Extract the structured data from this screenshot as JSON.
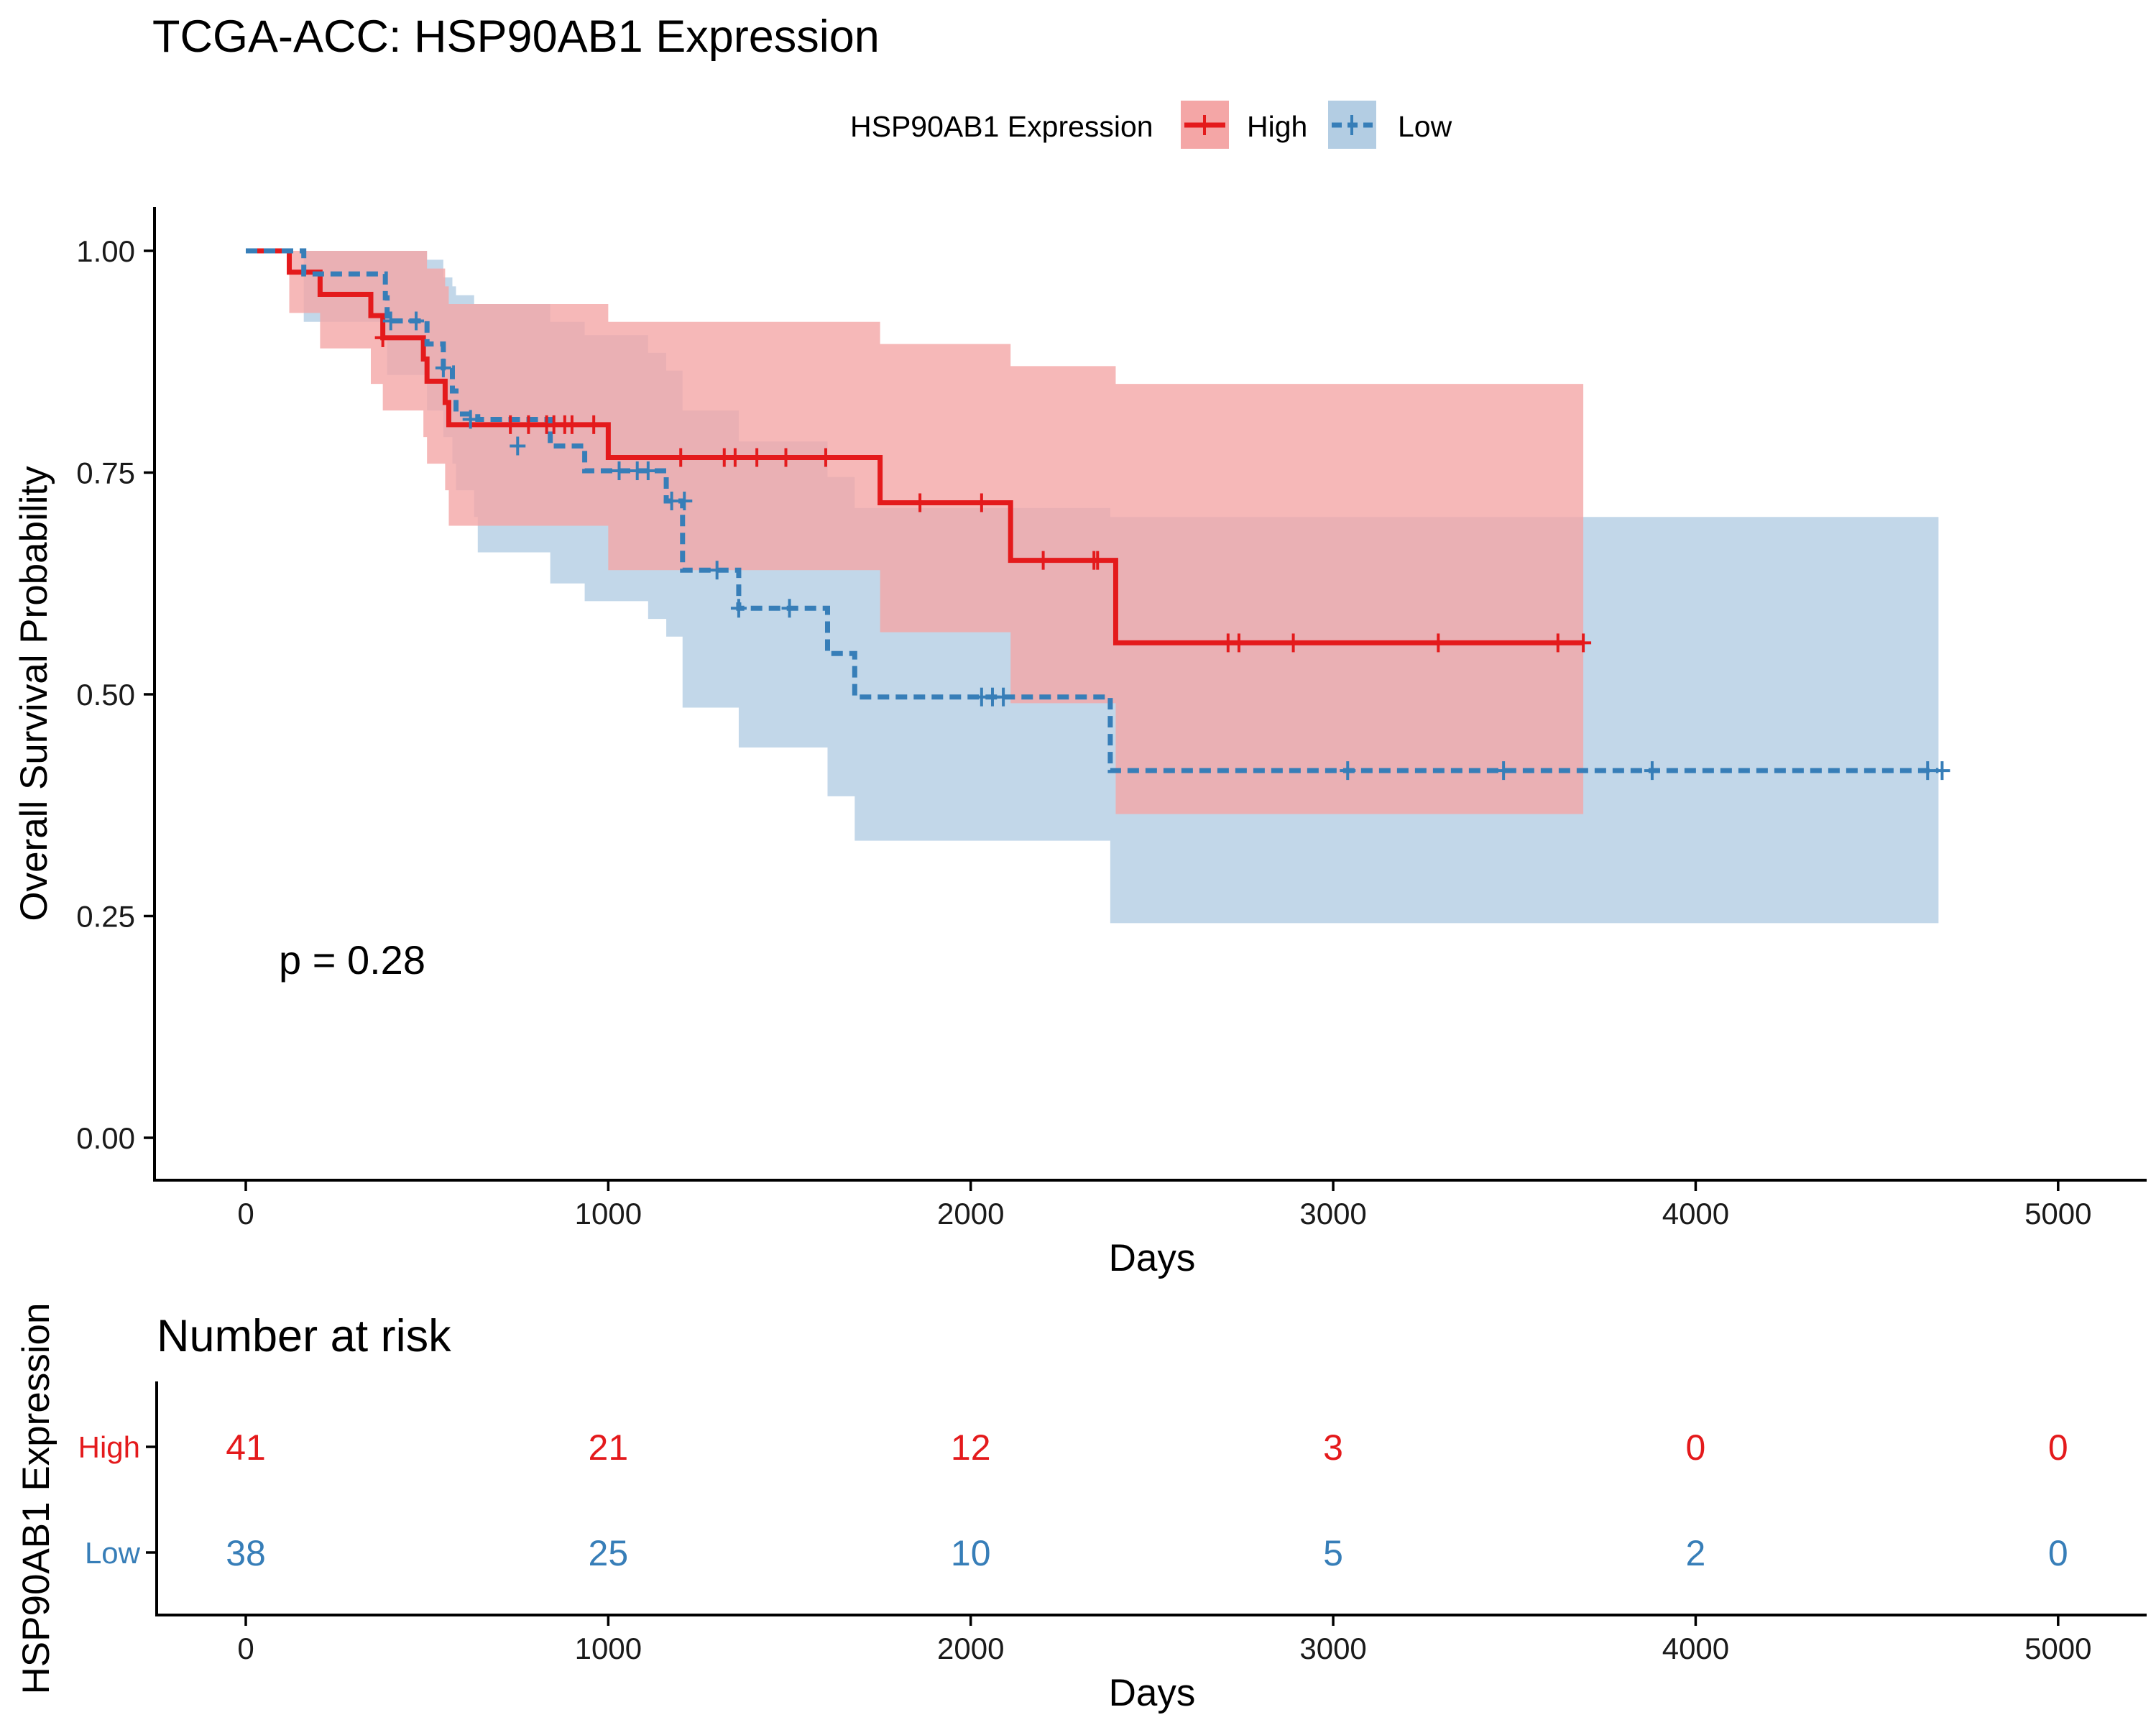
{
  "chart_data": {
    "type": "line",
    "title": "TCGA-ACC: HSP90AB1 Expression",
    "xlabel": "Days",
    "ylabel": "Overall Survival Probability",
    "xlim": [
      -250,
      5250
    ],
    "ylim": [
      -0.05,
      1.05
    ],
    "xticks": [
      0,
      1000,
      2000,
      3000,
      4000,
      5000
    ],
    "xtick_labels": [
      "0",
      "1000",
      "2000",
      "3000",
      "4000",
      "5000"
    ],
    "yticks": [
      0,
      0.25,
      0.5,
      0.75,
      1.0
    ],
    "ytick_labels": [
      "0.00",
      "0.25",
      "0.50",
      "0.75",
      "1.00"
    ],
    "grid": false,
    "legend": {
      "title": "HSP90AB1 Expression",
      "position": "top",
      "entries": [
        "High",
        "Low"
      ]
    },
    "annotation": "p = 0.28",
    "series": [
      {
        "name": "High",
        "color": "#E41A1C",
        "fill": "#F4A6A6",
        "linestyle": "solid",
        "steps": [
          [
            0,
            1.0
          ],
          [
            120,
            0.976
          ],
          [
            205,
            0.951
          ],
          [
            345,
            0.927
          ],
          [
            378,
            0.902
          ],
          [
            490,
            0.878
          ],
          [
            500,
            0.853
          ],
          [
            550,
            0.829
          ],
          [
            560,
            0.804
          ],
          [
            1000,
            0.767
          ],
          [
            1750,
            0.716
          ],
          [
            2110,
            0.651
          ],
          [
            2400,
            0.558
          ],
          [
            3690,
            0.558
          ]
        ],
        "ci": [
          [
            0,
            1.0,
            1.0
          ],
          [
            120,
            0.93,
            1.0
          ],
          [
            205,
            0.89,
            1.0
          ],
          [
            345,
            0.85,
            1.0
          ],
          [
            378,
            0.82,
            1.0
          ],
          [
            490,
            0.79,
            1.0
          ],
          [
            500,
            0.76,
            0.98
          ],
          [
            550,
            0.73,
            0.96
          ],
          [
            560,
            0.69,
            0.94
          ],
          [
            1000,
            0.64,
            0.92
          ],
          [
            1750,
            0.57,
            0.895
          ],
          [
            2110,
            0.49,
            0.87
          ],
          [
            2400,
            0.365,
            0.85
          ],
          [
            3690,
            0.365,
            0.85
          ]
        ],
        "censor": [
          [
            378,
            0.902
          ],
          [
            730,
            0.804
          ],
          [
            780,
            0.804
          ],
          [
            830,
            0.804
          ],
          [
            850,
            0.804
          ],
          [
            880,
            0.804
          ],
          [
            900,
            0.804
          ],
          [
            960,
            0.804
          ],
          [
            1200,
            0.767
          ],
          [
            1320,
            0.767
          ],
          [
            1350,
            0.767
          ],
          [
            1410,
            0.767
          ],
          [
            1490,
            0.767
          ],
          [
            1600,
            0.767
          ],
          [
            1860,
            0.716
          ],
          [
            2030,
            0.716
          ],
          [
            2200,
            0.651
          ],
          [
            2340,
            0.651
          ],
          [
            2350,
            0.651
          ],
          [
            2710,
            0.558
          ],
          [
            2740,
            0.558
          ],
          [
            2890,
            0.558
          ],
          [
            3290,
            0.558
          ],
          [
            3620,
            0.558
          ],
          [
            3690,
            0.558
          ]
        ]
      },
      {
        "name": "Low",
        "color": "#377EB8",
        "fill": "#B3CDE3",
        "linestyle": "dashed",
        "steps": [
          [
            0,
            1.0
          ],
          [
            160,
            0.974
          ],
          [
            385,
            0.947
          ],
          [
            390,
            0.921
          ],
          [
            500,
            0.895
          ],
          [
            545,
            0.868
          ],
          [
            570,
            0.842
          ],
          [
            580,
            0.816
          ],
          [
            630,
            0.816
          ],
          [
            640,
            0.81
          ],
          [
            840,
            0.78
          ],
          [
            935,
            0.752
          ],
          [
            1110,
            0.752
          ],
          [
            1160,
            0.718
          ],
          [
            1205,
            0.64
          ],
          [
            1360,
            0.597
          ],
          [
            1605,
            0.546
          ],
          [
            1680,
            0.497
          ],
          [
            2385,
            0.414
          ],
          [
            4670,
            0.414
          ]
        ],
        "ci": [
          [
            0,
            1.0,
            1.0
          ],
          [
            160,
            0.92,
            1.0
          ],
          [
            385,
            0.9,
            1.0
          ],
          [
            390,
            0.86,
            1.0
          ],
          [
            500,
            0.82,
            0.99
          ],
          [
            545,
            0.79,
            0.97
          ],
          [
            570,
            0.76,
            0.96
          ],
          [
            580,
            0.73,
            0.95
          ],
          [
            630,
            0.7,
            0.94
          ],
          [
            640,
            0.66,
            0.94
          ],
          [
            840,
            0.625,
            0.92
          ],
          [
            935,
            0.605,
            0.905
          ],
          [
            1110,
            0.585,
            0.885
          ],
          [
            1160,
            0.565,
            0.865
          ],
          [
            1205,
            0.485,
            0.82
          ],
          [
            1360,
            0.44,
            0.785
          ],
          [
            1605,
            0.385,
            0.745
          ],
          [
            1680,
            0.335,
            0.71
          ],
          [
            2385,
            0.242,
            0.7
          ],
          [
            4670,
            0.242,
            0.7
          ]
        ],
        "censor": [
          [
            400,
            0.921
          ],
          [
            470,
            0.921
          ],
          [
            545,
            0.868
          ],
          [
            620,
            0.81
          ],
          [
            750,
            0.78
          ],
          [
            1030,
            0.752
          ],
          [
            1080,
            0.752
          ],
          [
            1110,
            0.752
          ],
          [
            1175,
            0.718
          ],
          [
            1210,
            0.718
          ],
          [
            1300,
            0.64
          ],
          [
            1360,
            0.597
          ],
          [
            1500,
            0.597
          ],
          [
            2030,
            0.497
          ],
          [
            2060,
            0.497
          ],
          [
            2090,
            0.497
          ],
          [
            3040,
            0.414
          ],
          [
            3470,
            0.414
          ],
          [
            3880,
            0.414
          ],
          [
            4640,
            0.414
          ],
          [
            4680,
            0.414
          ]
        ]
      }
    ]
  },
  "risk_table": {
    "title": "Number at risk",
    "ylabel": "HSP90AB1 Expression",
    "xlabel": "Days",
    "times": [
      0,
      1000,
      2000,
      3000,
      4000,
      5000
    ],
    "time_labels": [
      "0",
      "1000",
      "2000",
      "3000",
      "4000",
      "5000"
    ],
    "rows": [
      {
        "label": "High",
        "color": "#E41A1C",
        "counts": [
          "41",
          "21",
          "12",
          "3",
          "0",
          "0"
        ]
      },
      {
        "label": "Low",
        "color": "#377EB8",
        "counts": [
          "38",
          "25",
          "10",
          "5",
          "2",
          "0"
        ]
      }
    ]
  }
}
